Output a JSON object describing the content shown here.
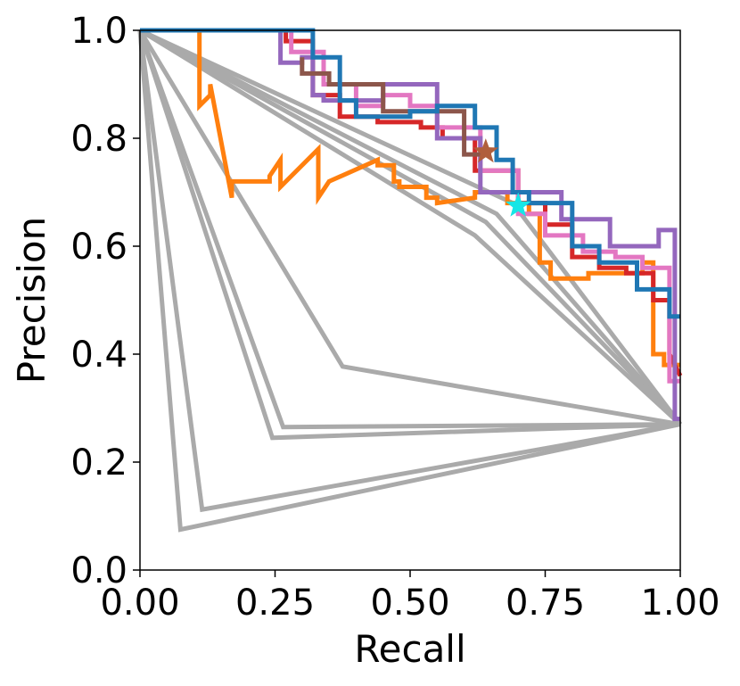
{
  "chart_data": {
    "type": "line",
    "title": "",
    "xlabel": "Recall",
    "ylabel": "Precision",
    "xlim": [
      0.0,
      1.0
    ],
    "ylim": [
      0.0,
      1.0
    ],
    "xticks": [
      "0.00",
      "0.25",
      "0.50",
      "0.75",
      "1.00"
    ],
    "yticks": [
      "0.0",
      "0.2",
      "0.4",
      "0.6",
      "0.8",
      "1.0"
    ],
    "grid": false,
    "legend": "none",
    "series": [
      {
        "color": "#aaaaaa",
        "x": [
          0,
          0.075,
          1.0
        ],
        "y": [
          1.0,
          0.075,
          0.27
        ]
      },
      {
        "color": "#aaaaaa",
        "x": [
          0,
          0.115,
          1.0
        ],
        "y": [
          1.0,
          0.112,
          0.27
        ]
      },
      {
        "color": "#aaaaaa",
        "x": [
          0,
          0.245,
          1.0
        ],
        "y": [
          1.0,
          0.245,
          0.27
        ]
      },
      {
        "color": "#aaaaaa",
        "x": [
          0,
          0.265,
          1.0
        ],
        "y": [
          1.0,
          0.265,
          0.27
        ]
      },
      {
        "color": "#aaaaaa",
        "x": [
          0,
          0.375,
          1.0
        ],
        "y": [
          1.0,
          0.377,
          0.27
        ]
      },
      {
        "color": "#aaaaaa",
        "x": [
          0,
          0.62,
          1.0
        ],
        "y": [
          1.0,
          0.62,
          0.27
        ]
      },
      {
        "color": "#aaaaaa",
        "x": [
          0,
          0.64,
          1.0
        ],
        "y": [
          1.0,
          0.645,
          0.27
        ]
      },
      {
        "color": "#aaaaaa",
        "x": [
          0,
          0.66,
          1.0
        ],
        "y": [
          1.0,
          0.66,
          0.27
        ]
      },
      {
        "color": "#aaaaaa",
        "x": [
          0,
          0.69,
          1.0
        ],
        "y": [
          1.0,
          0.68,
          0.27
        ]
      },
      {
        "color": "#ff7f0e",
        "x": [
          0,
          0.11,
          0.11,
          0.13,
          0.13,
          0.17,
          0.17,
          0.24,
          0.24,
          0.26,
          0.26,
          0.33,
          0.33,
          0.35,
          0.35,
          0.44,
          0.44,
          0.47,
          0.47,
          0.48,
          0.48,
          0.53,
          0.53,
          0.55,
          0.55,
          0.62,
          0.62,
          0.68,
          0.68,
          0.72,
          0.72,
          0.74,
          0.74,
          0.76,
          0.76,
          0.83,
          0.83,
          0.86,
          0.86,
          0.93,
          0.93,
          0.95,
          0.95,
          0.97,
          0.97,
          1.0
        ],
        "y": [
          1.0,
          1.0,
          0.86,
          0.88,
          0.9,
          0.69,
          0.72,
          0.72,
          0.73,
          0.76,
          0.71,
          0.78,
          0.69,
          0.72,
          0.72,
          0.76,
          0.75,
          0.75,
          0.72,
          0.72,
          0.71,
          0.71,
          0.69,
          0.69,
          0.68,
          0.69,
          0.7,
          0.7,
          0.68,
          0.68,
          0.66,
          0.66,
          0.57,
          0.57,
          0.54,
          0.54,
          0.55,
          0.55,
          0.55,
          0.55,
          0.57,
          0.57,
          0.4,
          0.4,
          0.38,
          0.38
        ]
      },
      {
        "color": "#d62728",
        "x": [
          0.27,
          0.27,
          0.32,
          0.32,
          0.37,
          0.37,
          0.44,
          0.44,
          0.52,
          0.52,
          0.56,
          0.56,
          0.62,
          0.62,
          0.7,
          0.7,
          0.75,
          0.75,
          0.8,
          0.8,
          0.85,
          0.85,
          0.9,
          0.9,
          0.95,
          0.95,
          0.98,
          0.98,
          1.0
        ],
        "y": [
          1.0,
          0.98,
          0.98,
          0.88,
          0.88,
          0.84,
          0.84,
          0.83,
          0.83,
          0.82,
          0.82,
          0.8,
          0.8,
          0.74,
          0.74,
          0.68,
          0.68,
          0.64,
          0.64,
          0.58,
          0.58,
          0.56,
          0.56,
          0.55,
          0.55,
          0.5,
          0.5,
          0.4,
          0.36
        ]
      },
      {
        "color": "#e377c2",
        "x": [
          0.28,
          0.28,
          0.34,
          0.34,
          0.4,
          0.4,
          0.45,
          0.45,
          0.5,
          0.5,
          0.55,
          0.55,
          0.63,
          0.63,
          0.7,
          0.7,
          0.75,
          0.75,
          0.82,
          0.82,
          0.88,
          0.88,
          0.93,
          0.93,
          0.98,
          0.98,
          1.0
        ],
        "y": [
          1.0,
          0.96,
          0.96,
          0.9,
          0.9,
          0.86,
          0.86,
          0.88,
          0.88,
          0.86,
          0.86,
          0.82,
          0.82,
          0.74,
          0.74,
          0.66,
          0.66,
          0.62,
          0.62,
          0.59,
          0.59,
          0.58,
          0.58,
          0.56,
          0.56,
          0.35,
          0.35
        ]
      },
      {
        "color": "#9467bd",
        "x": [
          0.26,
          0.26,
          0.3,
          0.3,
          0.32,
          0.32,
          0.34,
          0.34,
          0.38,
          0.38,
          0.45,
          0.45,
          0.55,
          0.55,
          0.63,
          0.63,
          0.7,
          0.7,
          0.78,
          0.78,
          0.87,
          0.87,
          0.96,
          0.96,
          0.99,
          0.99,
          1.0
        ],
        "y": [
          1.0,
          0.94,
          0.94,
          0.95,
          0.95,
          0.88,
          0.88,
          0.87,
          0.87,
          0.87,
          0.87,
          0.9,
          0.9,
          0.8,
          0.8,
          0.7,
          0.7,
          0.7,
          0.7,
          0.65,
          0.65,
          0.6,
          0.6,
          0.63,
          0.63,
          0.28,
          0.28
        ]
      },
      {
        "color": "#8c564b",
        "x": [
          0.3,
          0.3,
          0.35,
          0.35,
          0.45,
          0.45,
          0.6,
          0.6,
          0.65
        ],
        "y": [
          0.95,
          0.92,
          0.92,
          0.9,
          0.9,
          0.85,
          0.85,
          0.77,
          0.77
        ]
      },
      {
        "color": "#1f77b4",
        "x": [
          0,
          0.32,
          0.32,
          0.37,
          0.37,
          0.4,
          0.4,
          0.5,
          0.5,
          0.55,
          0.55,
          0.62,
          0.62,
          0.66,
          0.66,
          0.69,
          0.69,
          0.72,
          0.72,
          0.8,
          0.8,
          0.85,
          0.85,
          0.92,
          0.92,
          0.98,
          0.98,
          1.0
        ],
        "y": [
          1.0,
          1.0,
          0.95,
          0.95,
          0.87,
          0.87,
          0.84,
          0.84,
          0.85,
          0.85,
          0.86,
          0.86,
          0.82,
          0.82,
          0.76,
          0.76,
          0.7,
          0.7,
          0.68,
          0.68,
          0.6,
          0.6,
          0.57,
          0.57,
          0.52,
          0.52,
          0.47,
          0.47
        ]
      }
    ],
    "markers": [
      {
        "shape": "star",
        "color": "#b05f3c",
        "x": 0.64,
        "y": 0.775
      },
      {
        "shape": "star",
        "color": "#17e6e6",
        "x": 0.7,
        "y": 0.675
      }
    ]
  }
}
